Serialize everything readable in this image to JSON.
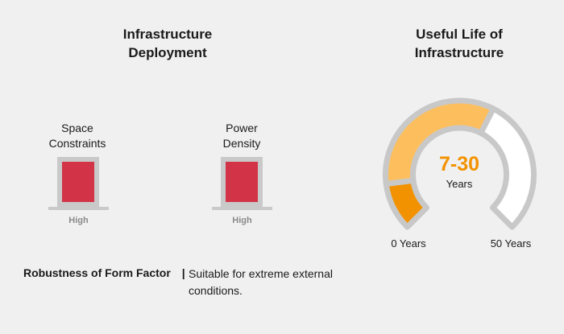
{
  "deployment": {
    "title_line1": "Infrastructure",
    "title_line2": "Deployment",
    "space": {
      "label_line1": "Space",
      "label_line2": "Constraints",
      "level": "High"
    },
    "power": {
      "label_line1": "Power",
      "label_line2": "Density",
      "level": "High"
    },
    "bar_color": "#d33346"
  },
  "robustness": {
    "label": "Robustness of Form Factor",
    "separator": "|",
    "text_line1": "Suitable for extreme external",
    "text_line2": "conditions."
  },
  "useful_life": {
    "title_line1": "Useful Life of",
    "title_line2": "Infrastructure",
    "value": "7-30",
    "unit": "Years",
    "min_label": "0 Years",
    "max_label": "50 Years",
    "range_min": 0,
    "range_max": 50,
    "band_start": 7,
    "band_end": 30,
    "colors": {
      "low": "#f39200",
      "band": "#fdbf5e",
      "high": "#ffffff",
      "outline": "#c8c8c8",
      "value_text": "#f39200"
    }
  }
}
